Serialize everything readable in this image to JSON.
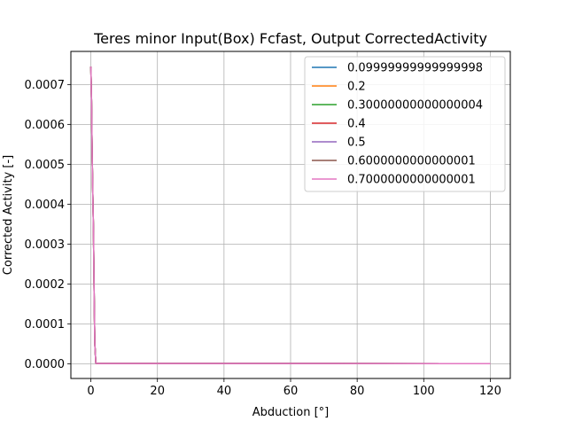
{
  "chart_data": {
    "type": "line",
    "title": "Teres minor Input(Box) Fcfast, Output CorrectedActivity",
    "xlabel": "Abduction [°]",
    "ylabel": "Corrected Activity [-]",
    "xlim": [
      -6,
      126
    ],
    "ylim": [
      -3.7e-05,
      0.000783
    ],
    "xticks": [
      0,
      20,
      40,
      60,
      80,
      100,
      120
    ],
    "xtick_labels": [
      "0",
      "20",
      "40",
      "60",
      "80",
      "100",
      "120"
    ],
    "yticks": [
      0,
      0.0001,
      0.0002,
      0.0003,
      0.0004,
      0.0005,
      0.0006,
      0.0007
    ],
    "ytick_labels": [
      "0.0000",
      "0.0001",
      "0.0002",
      "0.0003",
      "0.0004",
      "0.0005",
      "0.0006",
      "0.0007"
    ],
    "grid": true,
    "legend_position": "top-right",
    "series": [
      {
        "name": "0.09999999999999998",
        "color": "#1f77b4",
        "x": [
          0,
          0.2,
          0.4,
          0.6,
          0.8,
          1.0,
          1.2,
          1.5,
          2,
          120
        ],
        "y": [
          0.000745,
          0.00066,
          0.00052,
          0.00042,
          0.00033,
          0.00017,
          5e-05,
          1e-06,
          5e-07,
          3e-07
        ]
      },
      {
        "name": "0.2",
        "color": "#ff7f0e",
        "x": [
          0,
          0.2,
          0.4,
          0.6,
          0.8,
          1.0,
          1.2,
          1.5,
          2,
          120
        ],
        "y": [
          0.000745,
          0.00066,
          0.00052,
          0.00042,
          0.00033,
          0.00017,
          5e-05,
          1e-06,
          5e-07,
          3e-07
        ]
      },
      {
        "name": "0.30000000000000004",
        "color": "#2ca02c",
        "x": [
          0,
          0.2,
          0.4,
          0.6,
          0.8,
          1.0,
          1.2,
          1.5,
          2,
          120
        ],
        "y": [
          0.000745,
          0.00066,
          0.00052,
          0.00042,
          0.00033,
          0.00017,
          5e-05,
          1e-06,
          5e-07,
          3e-07
        ]
      },
      {
        "name": "0.4",
        "color": "#d62728",
        "x": [
          0,
          0.2,
          0.4,
          0.6,
          0.8,
          1.0,
          1.2,
          1.5,
          2,
          120
        ],
        "y": [
          0.000745,
          0.00066,
          0.00052,
          0.00042,
          0.00033,
          0.00017,
          5e-05,
          1e-06,
          5e-07,
          3e-07
        ]
      },
      {
        "name": "0.5",
        "color": "#9467bd",
        "x": [
          0,
          0.2,
          0.4,
          0.6,
          0.8,
          1.0,
          1.2,
          1.5,
          2,
          120
        ],
        "y": [
          0.000745,
          0.00066,
          0.00052,
          0.00042,
          0.00033,
          0.00017,
          5e-05,
          1e-06,
          5e-07,
          3e-07
        ]
      },
      {
        "name": "0.6000000000000001",
        "color": "#8c564b",
        "x": [
          0,
          0.2,
          0.4,
          0.6,
          0.8,
          1.0,
          1.2,
          1.5,
          2,
          120
        ],
        "y": [
          0.000745,
          0.00066,
          0.00052,
          0.00042,
          0.00033,
          0.00017,
          5e-05,
          1e-06,
          5e-07,
          3e-07
        ]
      },
      {
        "name": "0.7000000000000001",
        "color": "#e377c2",
        "x": [
          0,
          0.2,
          0.4,
          0.6,
          0.8,
          1.0,
          1.2,
          1.5,
          2,
          120
        ],
        "y": [
          0.000745,
          0.00066,
          0.00052,
          0.00042,
          0.00033,
          0.00017,
          5e-05,
          1e-06,
          5e-07,
          3e-07
        ]
      }
    ]
  }
}
